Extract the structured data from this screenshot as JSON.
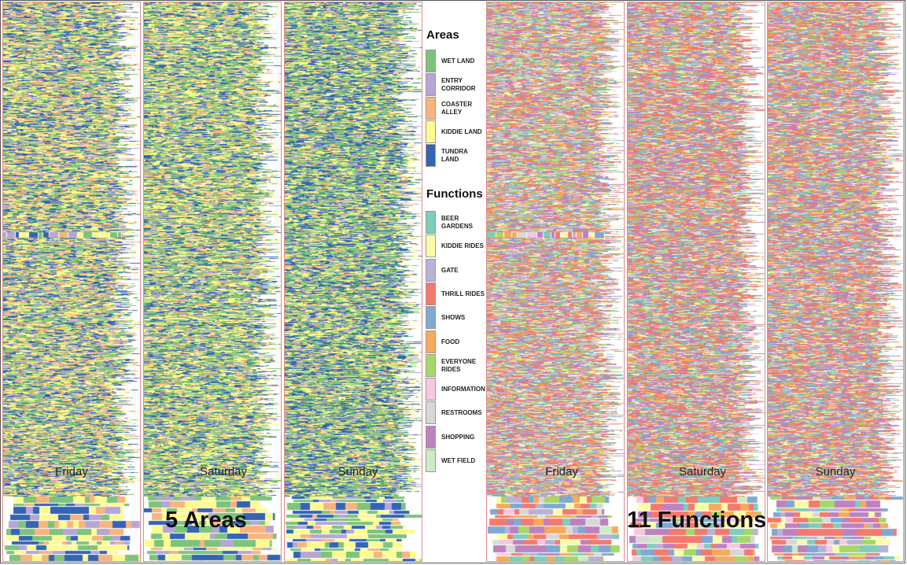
{
  "chart_data": [
    {
      "type": "heatmap",
      "group_label": "5 Areas",
      "panels": [
        {
          "day": "Friday"
        },
        {
          "day": "Saturday"
        },
        {
          "day": "Sunday"
        }
      ],
      "legend_title": "Areas",
      "categories": [
        {
          "label": "WET LAND",
          "color": "#7dc47a"
        },
        {
          "label": "ENTRY CORRIDOR",
          "color": "#b6a6d6"
        },
        {
          "label": "COASTER ALLEY",
          "color": "#f7b57d"
        },
        {
          "label": "KIDDIE LAND",
          "color": "#fdfb8c"
        },
        {
          "label": "TUNDRA LAND",
          "color": "#3464b4"
        }
      ]
    },
    {
      "type": "heatmap",
      "group_label": "11 Functions",
      "panels": [
        {
          "day": "Friday"
        },
        {
          "day": "Saturday"
        },
        {
          "day": "Sunday"
        }
      ],
      "legend_title": "Functions",
      "categories": [
        {
          "label": "BEER GARDENS",
          "color": "#7fcdbb"
        },
        {
          "label": "KIDDIE RIDES",
          "color": "#fcfca8"
        },
        {
          "label": "GATE",
          "color": "#b8b2d6"
        },
        {
          "label": "THRILL RIDES",
          "color": "#f47a6c"
        },
        {
          "label": "SHOWS",
          "color": "#7fa9d2"
        },
        {
          "label": "FOOD",
          "color": "#f7a95c"
        },
        {
          "label": "EVERYONE RIDES",
          "color": "#a6d767"
        },
        {
          "label": "INFORMATION",
          "color": "#f7c6df"
        },
        {
          "label": "RESTROOMS",
          "color": "#d7d7d7"
        },
        {
          "label": "SHOPPING",
          "color": "#be81c0"
        },
        {
          "label": "WET FIELD",
          "color": "#ccebc5"
        }
      ]
    }
  ]
}
